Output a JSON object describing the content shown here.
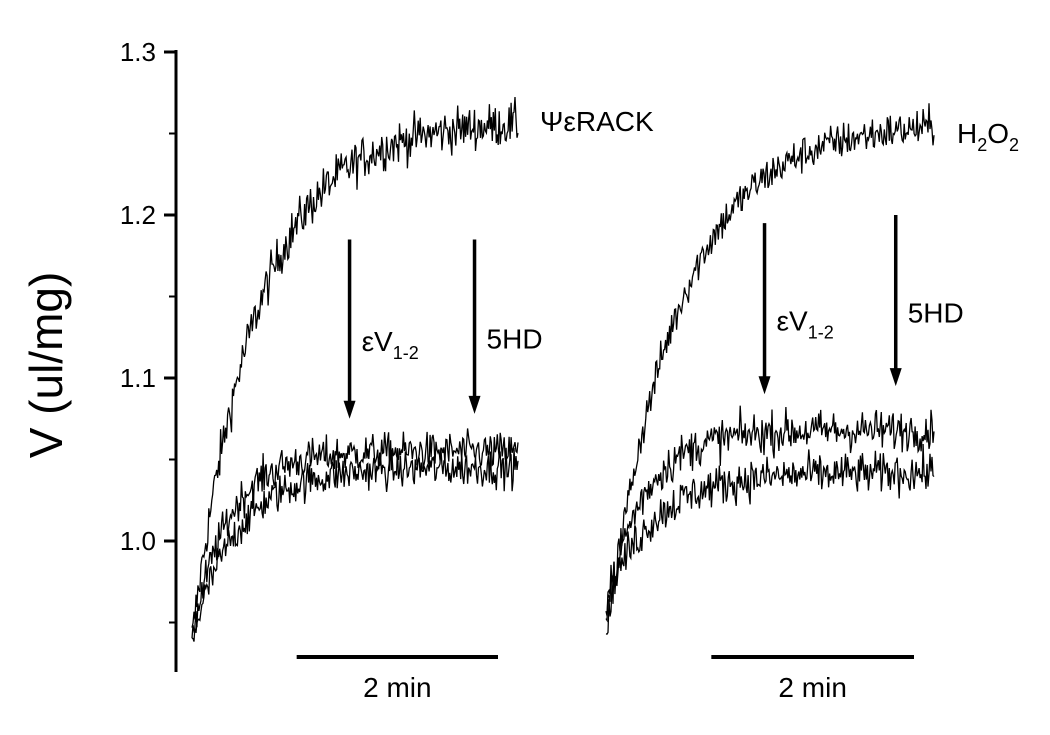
{
  "chart_data": {
    "type": "line",
    "ylabel": "V (ul/mg)",
    "ylim": [
      0.92,
      1.3
    ],
    "yticks": [
      {
        "value": 1.0,
        "label": "1.0"
      },
      {
        "value": 1.1,
        "label": "1.1"
      },
      {
        "value": 1.2,
        "label": "1.2"
      },
      {
        "value": 1.3,
        "label": "1.3"
      }
    ],
    "x_units": "min",
    "scale_bar": {
      "length": 2,
      "label": "2 min"
    },
    "panels": [
      {
        "id": "left",
        "label": "ΨεRACK",
        "label_parts": {
          "main": "ΨεRACK"
        },
        "x_range": [
          0,
          3.0
        ],
        "series": [
          {
            "role": "upper",
            "start": 0.94,
            "plateau": 1.258,
            "tau": 0.6,
            "noise": 0.013
          },
          {
            "role": "lower-a",
            "start": 0.94,
            "plateau": 1.055,
            "tau": 0.33,
            "noise": 0.011
          },
          {
            "role": "lower-b",
            "start": 0.94,
            "plateau": 1.045,
            "tau": 0.42,
            "noise": 0.011
          }
        ],
        "arrows": [
          {
            "x": 1.45,
            "y_from": 1.185,
            "y_to": 1.075,
            "label": "εV",
            "sub": "1-2"
          },
          {
            "x": 2.6,
            "y_from": 1.185,
            "y_to": 1.078,
            "label": "5HD",
            "sub": ""
          }
        ]
      },
      {
        "id": "right",
        "label_parts": {
          "main": "H",
          "sub1": "2",
          "mid": "O",
          "sub2": "2"
        },
        "x_range": [
          0,
          3.0
        ],
        "series": [
          {
            "role": "upper",
            "start": 0.94,
            "plateau": 1.257,
            "tau": 0.65,
            "noise": 0.011
          },
          {
            "role": "lower-a",
            "start": 0.96,
            "plateau": 1.068,
            "tau": 0.35,
            "noise": 0.012
          },
          {
            "role": "lower-b",
            "start": 0.965,
            "plateau": 1.042,
            "tau": 0.45,
            "noise": 0.012
          }
        ],
        "arrows": [
          {
            "x": 1.45,
            "y_from": 1.195,
            "y_to": 1.09,
            "label": "εV",
            "sub": "1-2"
          },
          {
            "x": 2.65,
            "y_from": 1.2,
            "y_to": 1.095,
            "label": "5HD",
            "sub": ""
          }
        ]
      }
    ]
  }
}
